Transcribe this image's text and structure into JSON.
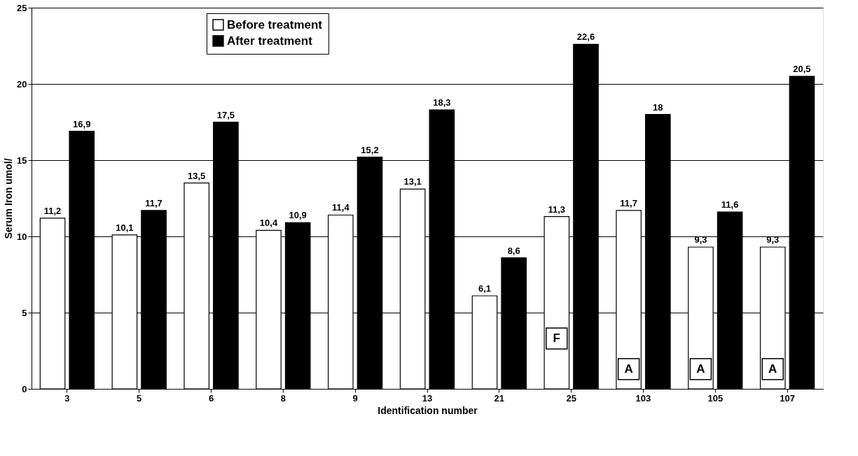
{
  "chart_data": {
    "type": "bar",
    "xlabel": "Identification number",
    "ylabel": "Serum Iron umol/",
    "categories": [
      "3",
      "5",
      "6",
      "8",
      "9",
      "13",
      "21",
      "25",
      "103",
      "105",
      "107"
    ],
    "series": [
      {
        "name": "Before treatment",
        "color": "#ffffff",
        "values": [
          11.2,
          10.1,
          13.5,
          10.4,
          11.4,
          13.1,
          6.1,
          11.3,
          11.7,
          9.3,
          9.3
        ],
        "value_labels": [
          "11,2",
          "10,1",
          "13,5",
          "10,4",
          "11,4",
          "13,1",
          "6,1",
          "11,3",
          "11,7",
          "9,3",
          "9,3"
        ]
      },
      {
        "name": "After treatment",
        "color": "#000000",
        "values": [
          16.9,
          11.7,
          17.5,
          10.9,
          15.2,
          18.3,
          8.6,
          22.6,
          18,
          11.6,
          20.5
        ],
        "value_labels": [
          "16,9",
          "11,7",
          "17,5",
          "10,9",
          "15,2",
          "18,3",
          "8,6",
          "22,6",
          "18",
          "11,6",
          "20,5"
        ]
      }
    ],
    "annotations": [
      {
        "text": "F",
        "x": "25",
        "y": 3.3
      },
      {
        "text": "A",
        "x": "103",
        "y": 1.3
      },
      {
        "text": "A",
        "x": "105",
        "y": 1.3
      },
      {
        "text": "A",
        "x": "107",
        "y": 1.3
      }
    ],
    "ylim": [
      0,
      25
    ],
    "yticks": [
      0,
      5,
      10,
      15,
      20,
      25
    ],
    "grid": "y",
    "legend": "top left"
  }
}
